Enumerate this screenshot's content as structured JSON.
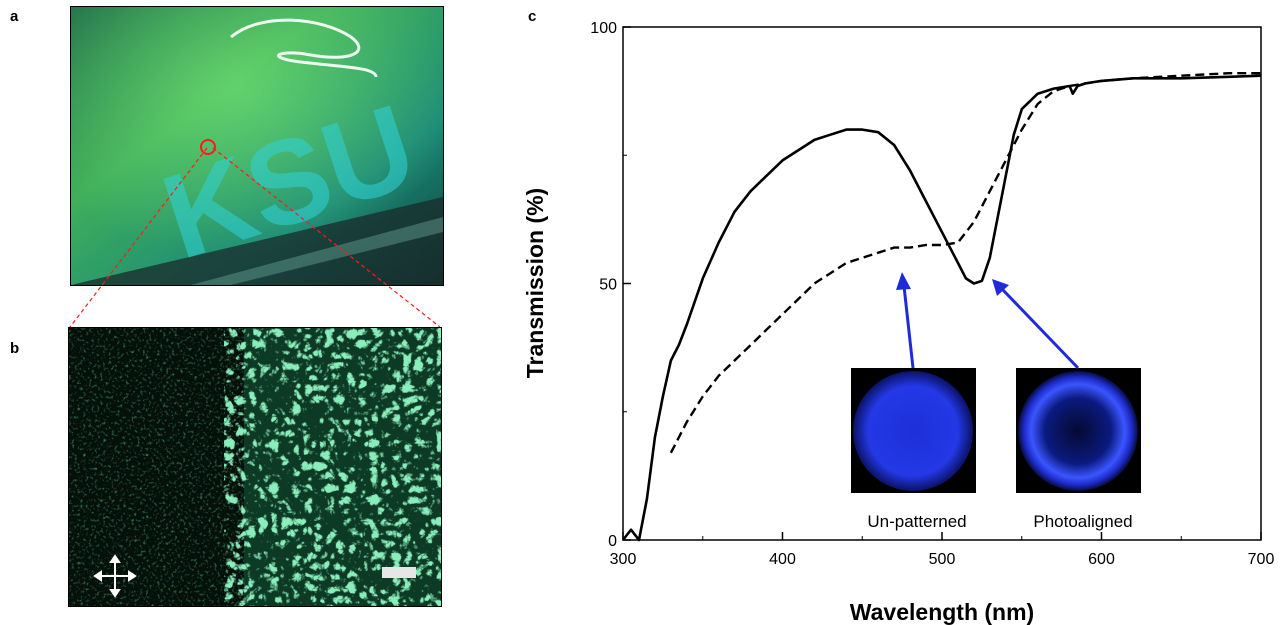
{
  "panels": {
    "a": "a",
    "b": "b",
    "c": "c"
  },
  "photo_a": {
    "watermark_text": "KSU"
  },
  "colors": {
    "photo_green": "#2fa85a",
    "photo_cyan": "#2bc4c8",
    "texture_green": "#3ccf7e",
    "arrow_blue": "#1e2bd6",
    "circle_red": "#ff1a1a",
    "inset_blue": "#2233ff"
  },
  "chart_data": {
    "type": "line",
    "xlabel": "Wavelength (nm)",
    "ylabel": "Transmission (%)",
    "xlim": [
      300,
      700
    ],
    "ylim": [
      0,
      100
    ],
    "x_ticks": [
      "300",
      "400",
      "500",
      "600",
      "700"
    ],
    "y_ticks": [
      "0",
      "50",
      "100"
    ],
    "grid": false,
    "series": [
      {
        "style": "solid",
        "points": [
          [
            300,
            0
          ],
          [
            305,
            2
          ],
          [
            310,
            0
          ],
          [
            315,
            8
          ],
          [
            320,
            20
          ],
          [
            325,
            28
          ],
          [
            330,
            35
          ],
          [
            335,
            38
          ],
          [
            340,
            42
          ],
          [
            350,
            51
          ],
          [
            360,
            58
          ],
          [
            370,
            64
          ],
          [
            380,
            68
          ],
          [
            390,
            71
          ],
          [
            400,
            74
          ],
          [
            410,
            76
          ],
          [
            420,
            78
          ],
          [
            430,
            79
          ],
          [
            440,
            80
          ],
          [
            450,
            80
          ],
          [
            460,
            79.5
          ],
          [
            470,
            77
          ],
          [
            480,
            72
          ],
          [
            490,
            66
          ],
          [
            500,
            60
          ],
          [
            510,
            54
          ],
          [
            515,
            51
          ],
          [
            520,
            50
          ],
          [
            525,
            50.5
          ],
          [
            530,
            55
          ],
          [
            535,
            63
          ],
          [
            540,
            71
          ],
          [
            545,
            79
          ],
          [
            550,
            84
          ],
          [
            560,
            87
          ],
          [
            570,
            88
          ],
          [
            580,
            88.5
          ],
          [
            582,
            87
          ],
          [
            585,
            88.5
          ],
          [
            590,
            89
          ],
          [
            600,
            89.5
          ],
          [
            620,
            90
          ],
          [
            650,
            90
          ],
          [
            680,
            90.3
          ],
          [
            700,
            90.5
          ]
        ]
      },
      {
        "style": "dashed",
        "points": [
          [
            330,
            17
          ],
          [
            340,
            23
          ],
          [
            350,
            28
          ],
          [
            360,
            32
          ],
          [
            370,
            35
          ],
          [
            380,
            38
          ],
          [
            390,
            41
          ],
          [
            400,
            44
          ],
          [
            410,
            47
          ],
          [
            420,
            50
          ],
          [
            430,
            52
          ],
          [
            440,
            54
          ],
          [
            450,
            55
          ],
          [
            460,
            56
          ],
          [
            470,
            57
          ],
          [
            480,
            57
          ],
          [
            490,
            57.5
          ],
          [
            500,
            57.5
          ],
          [
            510,
            58
          ],
          [
            520,
            62
          ],
          [
            530,
            68
          ],
          [
            540,
            74
          ],
          [
            550,
            80
          ],
          [
            560,
            85
          ],
          [
            570,
            87.5
          ],
          [
            580,
            88.5
          ],
          [
            600,
            89.5
          ],
          [
            620,
            90
          ],
          [
            650,
            90.5
          ],
          [
            680,
            91
          ],
          [
            700,
            91
          ]
        ]
      }
    ],
    "annotations": [
      {
        "label": "Un-patterned",
        "x": 475,
        "y": 57,
        "appearance": "uniform blue disk"
      },
      {
        "label": "Photoaligned",
        "x": 525,
        "y": 50,
        "appearance": "bright blue ring"
      }
    ]
  }
}
